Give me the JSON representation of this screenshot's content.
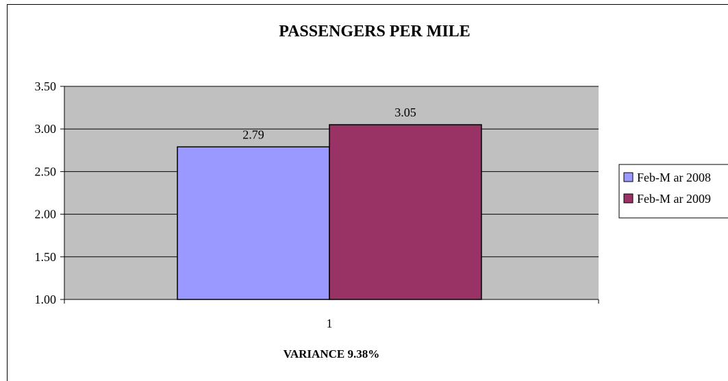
{
  "chart_data": {
    "type": "bar",
    "title": "PASSENGERS PER MILE",
    "xlabel": "VARIANCE 9.38%",
    "ylabel": "",
    "categories": [
      "1"
    ],
    "series": [
      {
        "name": "Feb-M ar 2008",
        "values": [
          2.79
        ],
        "data_label": "2.79",
        "color": "#9999FF"
      },
      {
        "name": "Feb-M ar 2009",
        "values": [
          3.05
        ],
        "data_label": "3.05",
        "color": "#993366"
      }
    ],
    "ylim": [
      1.0,
      3.5
    ],
    "yticks": [
      "1.00",
      "1.50",
      "2.00",
      "2.50",
      "3.00",
      "3.50"
    ],
    "ytick_values": [
      1.0,
      1.5,
      2.0,
      2.5,
      3.0,
      3.5
    ],
    "grid": true,
    "plot_background": "#C0C0C0",
    "legend": "right"
  }
}
